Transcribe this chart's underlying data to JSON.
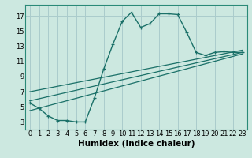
{
  "title": "",
  "xlabel": "Humidex (Indice chaleur)",
  "bg_color": "#cce8e0",
  "grid_color": "#aacccc",
  "line_color": "#1a7068",
  "spine_color": "#2a8a78",
  "xlim": [
    -0.5,
    23.5
  ],
  "ylim": [
    2.0,
    18.5
  ],
  "yticks": [
    3,
    5,
    7,
    9,
    11,
    13,
    15,
    17
  ],
  "xticks": [
    0,
    1,
    2,
    3,
    4,
    5,
    6,
    7,
    8,
    9,
    10,
    11,
    12,
    13,
    14,
    15,
    16,
    17,
    18,
    19,
    20,
    21,
    22,
    23
  ],
  "main_x": [
    0,
    1,
    2,
    3,
    4,
    5,
    6,
    7,
    8,
    9,
    10,
    11,
    12,
    13,
    14,
    15,
    16,
    17,
    18,
    19,
    20,
    21,
    22,
    23
  ],
  "main_y": [
    5.5,
    4.8,
    3.8,
    3.2,
    3.2,
    3.0,
    3.0,
    6.2,
    10.0,
    13.3,
    16.3,
    17.5,
    15.5,
    16.0,
    17.3,
    17.3,
    17.2,
    14.8,
    12.2,
    11.8,
    12.2,
    12.3,
    12.2,
    12.2
  ],
  "line1_x": [
    0,
    23
  ],
  "line1_y": [
    4.5,
    12.0
  ],
  "line2_x": [
    0,
    23
  ],
  "line2_y": [
    5.8,
    12.2
  ],
  "line3_x": [
    0,
    23
  ],
  "line3_y": [
    7.0,
    12.5
  ],
  "tick_fontsize": 6,
  "label_fontsize": 7.5
}
